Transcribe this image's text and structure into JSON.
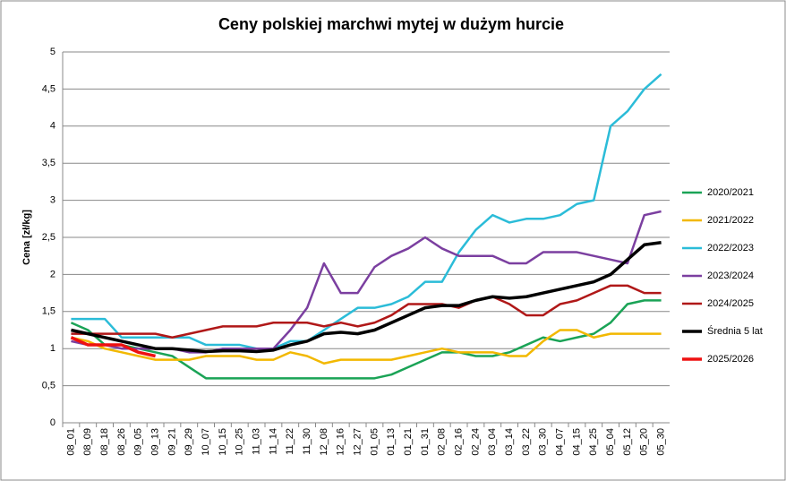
{
  "chart_data": {
    "type": "line",
    "title": "Ceny polskiej marchwi mytej w dużym hurcie",
    "y_label": "Cena [zł/kg]",
    "categories": [
      "08_01",
      "08_09",
      "08_18",
      "08_26",
      "09_05",
      "09_13",
      "09_21",
      "09_29",
      "10_07",
      "10_15",
      "10_25",
      "11_03",
      "11_14",
      "11_22",
      "11_30",
      "12_08",
      "12_16",
      "12_27",
      "01_05",
      "01_13",
      "01_21",
      "01_31",
      "02_08",
      "02_16",
      "02_24",
      "03_04",
      "03_14",
      "03_22",
      "03_30",
      "04_07",
      "04_15",
      "04_25",
      "05_04",
      "05_12",
      "05_20",
      "05_30"
    ],
    "ylim": [
      0,
      5
    ],
    "yticks": [
      0,
      {
        "value": 0.5,
        "label": "0,5"
      },
      1,
      {
        "value": 1.5,
        "label": "1,5"
      },
      2,
      {
        "value": 2.5,
        "label": "2,5"
      },
      3,
      {
        "value": 3.5,
        "label": "3,5"
      },
      4,
      {
        "value": 4.5,
        "label": "4,5"
      },
      5
    ],
    "grid": true,
    "legend": "right",
    "series": [
      {
        "name": "2020/2021",
        "color": "#1aa356",
        "width": 2.5,
        "values": [
          1.35,
          1.25,
          1.05,
          1.05,
          1.0,
          0.95,
          0.9,
          0.75,
          0.6,
          0.6,
          0.6,
          0.6,
          0.6,
          0.6,
          0.6,
          0.6,
          0.6,
          0.6,
          0.6,
          0.65,
          0.75,
          0.85,
          0.95,
          0.95,
          0.9,
          0.9,
          0.95,
          1.05,
          1.15,
          1.1,
          1.15,
          1.2,
          1.35,
          1.6,
          1.65,
          1.65
        ]
      },
      {
        "name": "2021/2022",
        "color": "#f2b800",
        "width": 2.5,
        "values": [
          1.15,
          1.1,
          1.0,
          0.95,
          0.9,
          0.85,
          0.85,
          0.85,
          0.9,
          0.9,
          0.9,
          0.85,
          0.85,
          0.95,
          0.9,
          0.8,
          0.85,
          0.85,
          0.85,
          0.85,
          0.9,
          0.95,
          1.0,
          0.95,
          0.95,
          0.95,
          0.9,
          0.9,
          1.1,
          1.25,
          1.25,
          1.15,
          1.2,
          1.2,
          1.2,
          1.2
        ]
      },
      {
        "name": "2022/2023",
        "color": "#2bbcd8",
        "width": 2.5,
        "values": [
          1.4,
          1.4,
          1.4,
          1.15,
          1.15,
          1.15,
          1.15,
          1.15,
          1.05,
          1.05,
          1.05,
          1.0,
          1.0,
          1.1,
          1.1,
          1.25,
          1.4,
          1.55,
          1.55,
          1.6,
          1.7,
          1.9,
          1.9,
          2.3,
          2.6,
          2.8,
          2.7,
          2.75,
          2.75,
          2.8,
          2.95,
          3.0,
          4.0,
          4.2,
          4.5,
          4.7
        ]
      },
      {
        "name": "2023/2024",
        "color": "#7b3fa0",
        "width": 2.5,
        "values": [
          1.1,
          1.05,
          1.05,
          1.0,
          1.0,
          1.0,
          1.0,
          0.95,
          0.95,
          1.0,
          1.0,
          1.0,
          1.0,
          1.25,
          1.55,
          2.15,
          1.75,
          1.75,
          2.1,
          2.25,
          2.35,
          2.5,
          2.35,
          2.25,
          2.25,
          2.25,
          2.15,
          2.15,
          2.3,
          2.3,
          2.3,
          2.25,
          2.2,
          2.15,
          2.8,
          2.85
        ]
      },
      {
        "name": "2024/2025",
        "color": "#b01818",
        "width": 2.5,
        "values": [
          1.2,
          1.2,
          1.2,
          1.2,
          1.2,
          1.2,
          1.15,
          1.2,
          1.25,
          1.3,
          1.3,
          1.3,
          1.35,
          1.35,
          1.35,
          1.3,
          1.35,
          1.3,
          1.35,
          1.45,
          1.6,
          1.6,
          1.6,
          1.55,
          1.65,
          1.7,
          1.6,
          1.45,
          1.45,
          1.6,
          1.65,
          1.75,
          1.85,
          1.85,
          1.75,
          1.75
        ]
      },
      {
        "name": "Średnia 5 lat",
        "color": "#000000",
        "width": 3.5,
        "values": [
          1.25,
          1.2,
          1.15,
          1.1,
          1.05,
          1.0,
          1.0,
          0.98,
          0.96,
          0.97,
          0.97,
          0.96,
          0.98,
          1.05,
          1.1,
          1.2,
          1.22,
          1.2,
          1.25,
          1.35,
          1.45,
          1.55,
          1.58,
          1.58,
          1.65,
          1.7,
          1.68,
          1.7,
          1.75,
          1.8,
          1.85,
          1.9,
          2.0,
          2.2,
          2.4,
          2.43
        ]
      },
      {
        "name": "2025/2026",
        "color": "#ee1111",
        "width": 3.5,
        "values": [
          1.15,
          1.05,
          1.05,
          1.05,
          0.95,
          0.9,
          null,
          null,
          null,
          null,
          null,
          null,
          null,
          null,
          null,
          null,
          null,
          null,
          null,
          null,
          null,
          null,
          null,
          null,
          null,
          null,
          null,
          null,
          null,
          null,
          null,
          null,
          null,
          null,
          null,
          null
        ]
      }
    ]
  }
}
